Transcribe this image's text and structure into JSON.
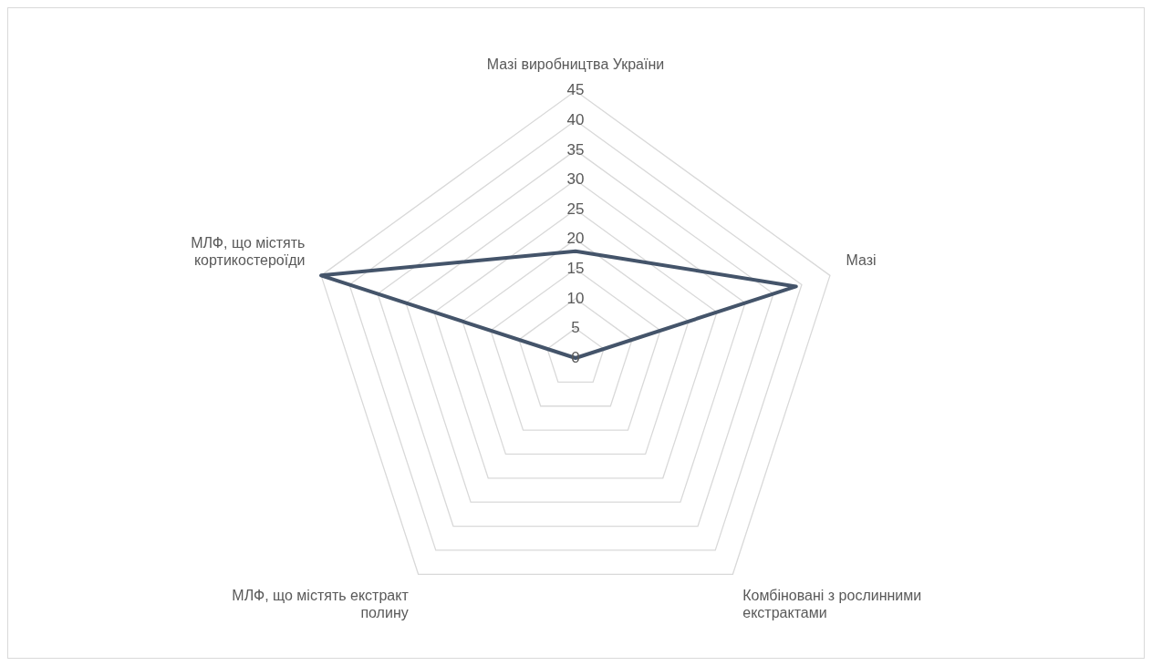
{
  "chart_data": {
    "type": "radar",
    "categories": [
      "Мазі виробництва України",
      "Мазі",
      "Комбіновані з рослинними екстрактами",
      "МЛФ, що містять екстракт полину",
      "МЛФ, що містять кортикостероїди"
    ],
    "series": [
      {
        "color": "#44546a",
        "values": [
          18,
          39,
          0,
          0,
          45
        ]
      }
    ],
    "ylim": [
      0,
      45
    ],
    "yticks": [
      0,
      5,
      10,
      15,
      20,
      25,
      30,
      35,
      40,
      45
    ],
    "grid": true,
    "legend": false,
    "marker": "none"
  }
}
